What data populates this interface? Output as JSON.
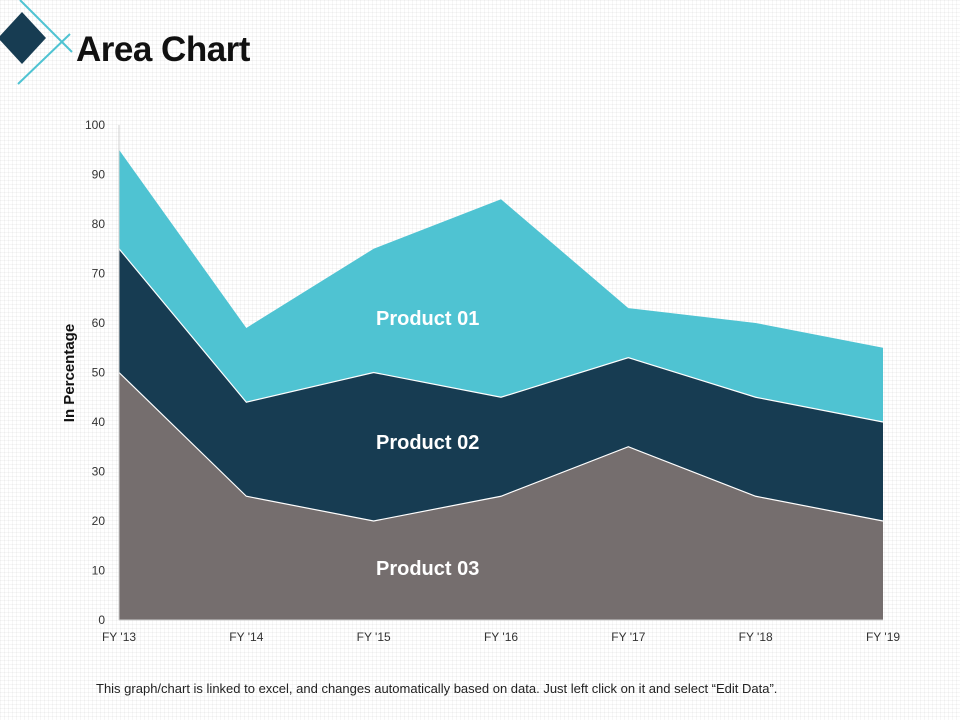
{
  "page": {
    "title": "Area Chart",
    "footer_note": "This graph/chart is linked to excel, and changes automatically based on data. Just left click on it and select “Edit Data”."
  },
  "colors": {
    "accent_dark": "#173C52",
    "accent_light": "#4FC3D2",
    "gray": "#756E6E"
  },
  "chart_data": {
    "type": "area",
    "stacked": true,
    "title": "Area Chart",
    "xlabel": "",
    "ylabel": "In Percentage",
    "categories": [
      "FY '13",
      "FY '14",
      "FY '15",
      "FY '16",
      "FY '17",
      "FY '18",
      "FY '19"
    ],
    "ylim": [
      0,
      100
    ],
    "yticks": [
      0,
      10,
      20,
      30,
      40,
      50,
      60,
      70,
      80,
      90,
      100
    ],
    "series": [
      {
        "name": "Product 03",
        "color": "#756E6E",
        "values": [
          50,
          25,
          20,
          25,
          35,
          25,
          20
        ]
      },
      {
        "name": "Product 02",
        "color": "#173C52",
        "values": [
          25,
          19,
          30,
          20,
          18,
          20,
          20
        ]
      },
      {
        "name": "Product 01",
        "color": "#4FC3D2",
        "values": [
          20,
          15,
          25,
          40,
          10,
          15,
          15
        ]
      }
    ],
    "legend": "inline labels"
  }
}
